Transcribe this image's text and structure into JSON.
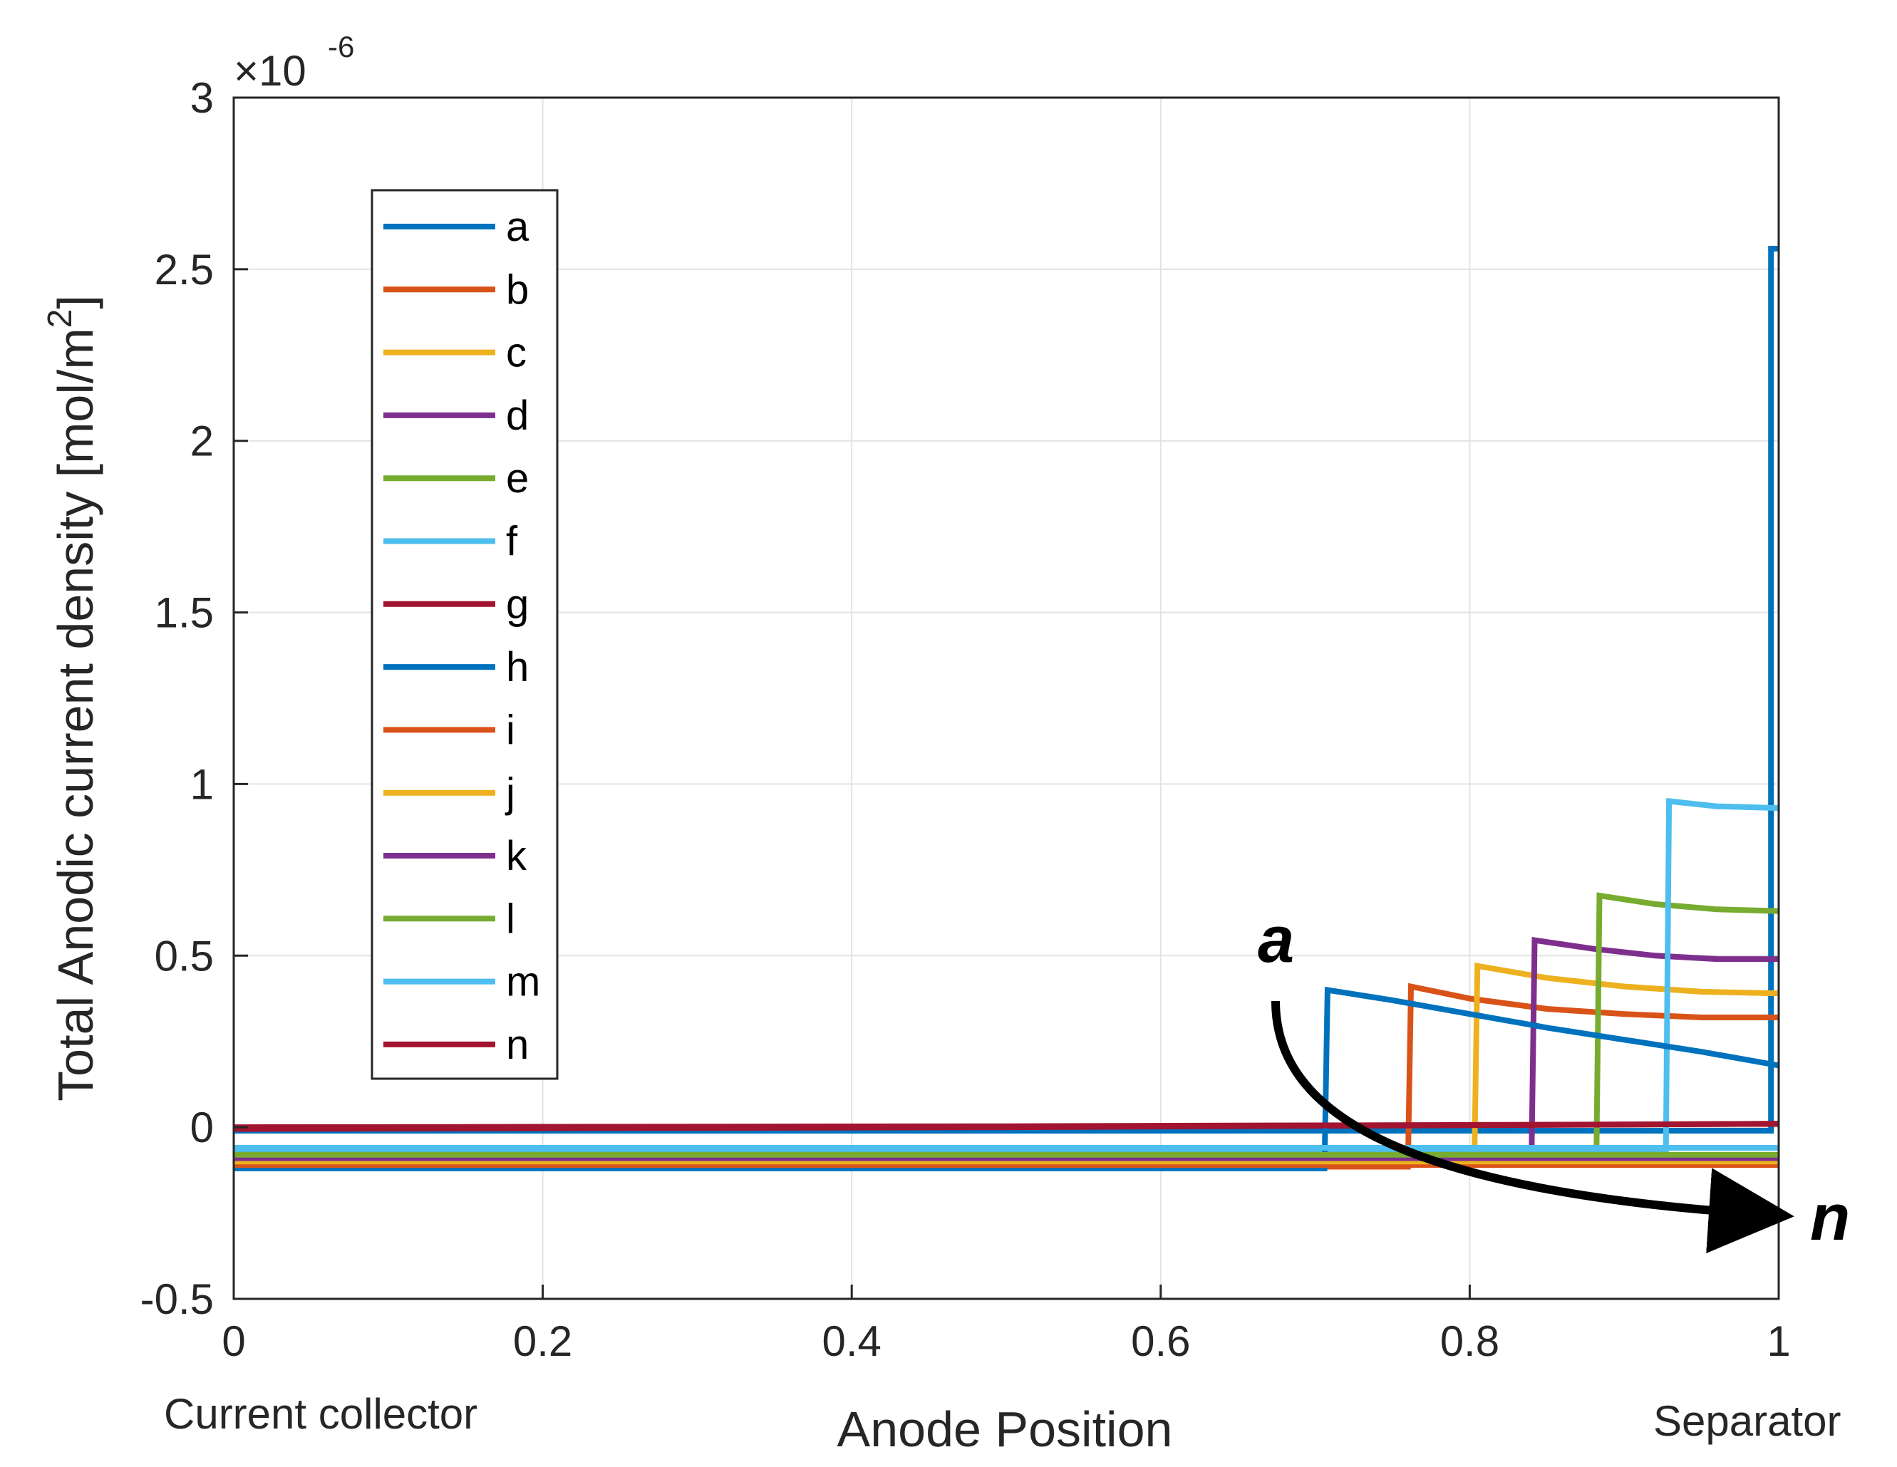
{
  "chart_data": {
    "type": "line",
    "title": "",
    "xlabel": "Anode Position",
    "ylabel": "Total Anodic current density [mol/m",
    "ylabel_superscript": "2",
    "ylabel_close": "]",
    "xlim": [
      0,
      1
    ],
    "ylim": [
      -0.5,
      3
    ],
    "y_multiplier_base": "×10",
    "y_multiplier_exponent": "-6",
    "x_ticks": [
      "0",
      "0.2",
      "0.4",
      "0.6",
      "0.8",
      "1"
    ],
    "y_ticks": [
      "-0.5",
      "0",
      "0.5",
      "1",
      "1.5",
      "2",
      "2.5",
      "3"
    ],
    "x_end_labels": {
      "left": "Current collector",
      "right": "Separator"
    },
    "grid": true,
    "legend_position": "top-left",
    "annotations": {
      "start": "a",
      "end": "n"
    },
    "series": [
      {
        "name": "a",
        "color": "#0072BD",
        "points": [
          [
            0,
            -0.01
          ],
          [
            0.995,
            -0.01
          ],
          [
            0.995,
            2.56
          ],
          [
            1.0,
            2.56
          ]
        ]
      },
      {
        "name": "b",
        "color": "#D95319",
        "points": [
          [
            0,
            -0.115
          ],
          [
            0.76,
            -0.115
          ],
          [
            0.762,
            0.41
          ],
          [
            0.8,
            0.375
          ],
          [
            0.85,
            0.345
          ],
          [
            0.9,
            0.33
          ],
          [
            0.95,
            0.32
          ],
          [
            1.0,
            0.32
          ]
        ]
      },
      {
        "name": "c",
        "color": "#EDB120",
        "points": [
          [
            0,
            -0.105
          ],
          [
            0.803,
            -0.105
          ],
          [
            0.805,
            0.47
          ],
          [
            0.85,
            0.435
          ],
          [
            0.9,
            0.41
          ],
          [
            0.95,
            0.395
          ],
          [
            1.0,
            0.39
          ]
        ]
      },
      {
        "name": "d",
        "color": "#7E2F8E",
        "points": [
          [
            0,
            -0.095
          ],
          [
            0.84,
            -0.095
          ],
          [
            0.842,
            0.545
          ],
          [
            0.88,
            0.52
          ],
          [
            0.92,
            0.5
          ],
          [
            0.96,
            0.49
          ],
          [
            1.0,
            0.49
          ]
        ]
      },
      {
        "name": "e",
        "color": "#77AC30",
        "points": [
          [
            0,
            -0.085
          ],
          [
            0.882,
            -0.085
          ],
          [
            0.884,
            0.675
          ],
          [
            0.92,
            0.65
          ],
          [
            0.96,
            0.635
          ],
          [
            1.0,
            0.63
          ]
        ]
      },
      {
        "name": "f",
        "color": "#4DBEEE",
        "points": [
          [
            0,
            -0.065
          ],
          [
            0.927,
            -0.065
          ],
          [
            0.929,
            0.95
          ],
          [
            0.96,
            0.935
          ],
          [
            1.0,
            0.93
          ]
        ]
      },
      {
        "name": "g",
        "color": "#A2142F",
        "points": [
          [
            0,
            -0.005
          ],
          [
            0.5,
            0.0
          ],
          [
            0.9,
            0.008
          ],
          [
            1.0,
            0.01
          ]
        ]
      },
      {
        "name": "h",
        "color": "#0072BD",
        "points": [
          [
            0,
            -0.12
          ],
          [
            0.706,
            -0.12
          ],
          [
            0.708,
            0.4
          ],
          [
            0.75,
            0.37
          ],
          [
            0.8,
            0.33
          ],
          [
            0.85,
            0.29
          ],
          [
            0.9,
            0.255
          ],
          [
            0.95,
            0.22
          ],
          [
            1.0,
            0.18
          ]
        ]
      },
      {
        "name": "i",
        "color": "#D95319",
        "points": [
          [
            0,
            -0.11
          ],
          [
            0.76,
            -0.11
          ],
          [
            1.0,
            -0.11
          ]
        ]
      },
      {
        "name": "j",
        "color": "#EDB120",
        "points": [
          [
            0,
            -0.1
          ],
          [
            0.8,
            -0.1
          ],
          [
            1.0,
            -0.1
          ]
        ]
      },
      {
        "name": "k",
        "color": "#7E2F8E",
        "points": [
          [
            0,
            -0.09
          ],
          [
            0.84,
            -0.09
          ],
          [
            1.0,
            -0.09
          ]
        ]
      },
      {
        "name": "l",
        "color": "#77AC30",
        "points": [
          [
            0,
            -0.08
          ],
          [
            0.88,
            -0.08
          ],
          [
            1.0,
            -0.08
          ]
        ]
      },
      {
        "name": "m",
        "color": "#4DBEEE",
        "points": [
          [
            0,
            -0.06
          ],
          [
            0.92,
            -0.06
          ],
          [
            1.0,
            -0.06
          ]
        ]
      },
      {
        "name": "n",
        "color": "#A2142F",
        "points": [
          [
            0,
            0.0
          ],
          [
            0.5,
            0.003
          ],
          [
            0.9,
            0.008
          ],
          [
            1.0,
            0.01
          ]
        ]
      }
    ]
  }
}
